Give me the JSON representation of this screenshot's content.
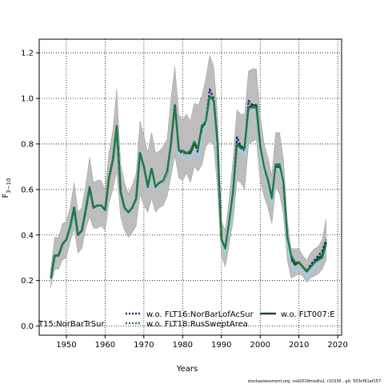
{
  "chart_data": {
    "type": "line",
    "xlabel": "Years",
    "ylabel_main": "F",
    "ylabel_sub": "3−10",
    "xlim": [
      1943,
      2021
    ],
    "ylim": [
      -0.04,
      1.26
    ],
    "xticks": [
      1950,
      1960,
      1970,
      1980,
      1990,
      2000,
      2010,
      2020
    ],
    "yticks": [
      0.0,
      0.2,
      0.4,
      0.6,
      0.8,
      1.0,
      1.2
    ],
    "ytick_labels": [
      "0.0",
      "0.2",
      "0.4",
      "0.6",
      "0.8",
      "1.0",
      "1.2"
    ],
    "grid": true,
    "legend_placement": "bottom",
    "x": [
      1946,
      1947,
      1948,
      1949,
      1950,
      1951,
      1952,
      1953,
      1954,
      1955,
      1956,
      1957,
      1958,
      1959,
      1960,
      1961,
      1962,
      1963,
      1964,
      1965,
      1966,
      1967,
      1968,
      1969,
      1970,
      1971,
      1972,
      1973,
      1974,
      1975,
      1976,
      1977,
      1978,
      1979,
      1980,
      1981,
      1982,
      1983,
      1984,
      1985,
      1986,
      1987,
      1988,
      1989,
      1990,
      1991,
      1992,
      1993,
      1994,
      1995,
      1996,
      1997,
      1998,
      1999,
      2000,
      2001,
      2002,
      2003,
      2004,
      2005,
      2006,
      2007,
      2008,
      2009,
      2010,
      2011,
      2012,
      2013,
      2014,
      2015,
      2016,
      2017
    ],
    "band_lower": [
      0.17,
      0.25,
      0.25,
      0.29,
      0.3,
      0.37,
      0.43,
      0.32,
      0.34,
      0.43,
      0.48,
      0.43,
      0.43,
      0.44,
      0.42,
      0.54,
      0.6,
      0.68,
      0.48,
      0.42,
      0.39,
      0.41,
      0.44,
      0.58,
      0.53,
      0.5,
      0.56,
      0.5,
      0.52,
      0.53,
      0.57,
      0.66,
      0.75,
      0.65,
      0.64,
      0.67,
      0.63,
      0.7,
      0.68,
      0.71,
      0.79,
      0.81,
      0.8,
      0.6,
      0.31,
      0.26,
      0.36,
      0.46,
      0.64,
      0.63,
      0.6,
      0.8,
      0.81,
      0.82,
      0.64,
      0.57,
      0.52,
      0.45,
      0.61,
      0.58,
      0.49,
      0.29,
      0.21,
      0.22,
      0.23,
      0.22,
      0.19,
      0.21,
      0.22,
      0.23,
      0.25,
      0.29
    ],
    "band_upper": [
      0.25,
      0.39,
      0.39,
      0.45,
      0.46,
      0.52,
      0.63,
      0.5,
      0.52,
      0.62,
      0.74,
      0.63,
      0.64,
      0.64,
      0.6,
      0.76,
      0.86,
      1.04,
      0.71,
      0.63,
      0.58,
      0.62,
      0.67,
      0.9,
      0.84,
      0.76,
      0.85,
      0.76,
      0.77,
      0.79,
      0.82,
      1.0,
      1.14,
      0.93,
      0.91,
      0.93,
      0.9,
      0.98,
      0.97,
      1.01,
      1.09,
      1.19,
      1.14,
      0.93,
      0.46,
      0.42,
      0.56,
      0.73,
      0.95,
      0.93,
      0.93,
      1.12,
      1.13,
      1.13,
      0.93,
      0.8,
      0.74,
      0.66,
      0.85,
      0.85,
      0.73,
      0.46,
      0.34,
      0.34,
      0.34,
      0.31,
      0.29,
      0.32,
      0.34,
      0.35,
      0.38,
      0.47
    ],
    "series": [
      {
        "name": "w.o. FLT16:NorBarLofAcSur",
        "color": "#1f2a8a",
        "dash": "3,2",
        "values": [
          0.21,
          0.31,
          0.31,
          0.36,
          0.38,
          0.44,
          0.52,
          0.4,
          0.42,
          0.51,
          0.61,
          0.52,
          0.53,
          0.53,
          0.51,
          0.65,
          0.73,
          0.88,
          0.59,
          0.52,
          0.5,
          0.52,
          0.56,
          0.76,
          0.69,
          0.61,
          0.69,
          0.61,
          0.63,
          0.64,
          0.68,
          0.8,
          0.97,
          0.77,
          0.76,
          0.76,
          0.76,
          0.81,
          0.76,
          0.87,
          0.9,
          1.04,
          1.0,
          0.8,
          0.38,
          0.33,
          0.45,
          0.59,
          0.83,
          0.79,
          0.77,
          0.99,
          0.97,
          0.97,
          0.78,
          0.68,
          0.63,
          0.55,
          0.71,
          0.71,
          0.63,
          0.38,
          0.29,
          0.27,
          0.28,
          0.26,
          0.24,
          0.27,
          0.29,
          0.31,
          0.33,
          0.38
        ]
      },
      {
        "name": "w.o. FLT007:E",
        "color": "#134f26",
        "dash": "",
        "values": [
          0.21,
          0.31,
          0.31,
          0.36,
          0.38,
          0.43,
          0.52,
          0.4,
          0.42,
          0.51,
          0.61,
          0.52,
          0.53,
          0.53,
          0.51,
          0.65,
          0.73,
          0.87,
          0.59,
          0.52,
          0.5,
          0.52,
          0.56,
          0.76,
          0.7,
          0.61,
          0.69,
          0.61,
          0.63,
          0.63,
          0.67,
          0.8,
          0.97,
          0.77,
          0.77,
          0.76,
          0.76,
          0.8,
          0.78,
          0.88,
          0.89,
          1.01,
          0.99,
          0.8,
          0.38,
          0.34,
          0.45,
          0.58,
          0.8,
          0.79,
          0.78,
          0.96,
          0.97,
          0.97,
          0.79,
          0.69,
          0.64,
          0.56,
          0.7,
          0.7,
          0.62,
          0.38,
          0.3,
          0.27,
          0.28,
          0.26,
          0.24,
          0.26,
          0.28,
          0.3,
          0.31,
          0.37
        ]
      },
      {
        "name": "T15:NorBarTrSur",
        "color": "#9fd0e8",
        "dash": "",
        "values": [
          0.21,
          0.31,
          0.31,
          0.36,
          0.38,
          0.43,
          0.52,
          0.4,
          0.42,
          0.51,
          0.61,
          0.52,
          0.53,
          0.53,
          0.51,
          0.65,
          0.73,
          0.87,
          0.59,
          0.52,
          0.5,
          0.52,
          0.56,
          0.76,
          0.69,
          0.6,
          0.68,
          0.6,
          0.62,
          0.63,
          0.67,
          0.79,
          0.96,
          0.75,
          0.74,
          0.73,
          0.73,
          0.77,
          0.74,
          0.84,
          0.87,
          1.0,
          0.97,
          0.78,
          0.37,
          0.32,
          0.44,
          0.57,
          0.78,
          0.77,
          0.75,
          0.94,
          0.94,
          0.95,
          0.77,
          0.67,
          0.62,
          0.54,
          0.69,
          0.69,
          0.61,
          0.36,
          0.27,
          0.24,
          0.25,
          0.24,
          0.22,
          0.24,
          0.26,
          0.27,
          0.29,
          0.33
        ]
      },
      {
        "name": "w.o. FLT18:RusSweptArea",
        "color": "#1a7a46",
        "dash": "",
        "values": [
          0.21,
          0.31,
          0.31,
          0.36,
          0.38,
          0.44,
          0.52,
          0.4,
          0.42,
          0.51,
          0.61,
          0.52,
          0.53,
          0.53,
          0.51,
          0.65,
          0.73,
          0.88,
          0.59,
          0.52,
          0.5,
          0.52,
          0.56,
          0.76,
          0.7,
          0.61,
          0.69,
          0.61,
          0.63,
          0.64,
          0.68,
          0.8,
          0.97,
          0.77,
          0.77,
          0.76,
          0.77,
          0.81,
          0.78,
          0.88,
          0.9,
          1.01,
          0.99,
          0.8,
          0.38,
          0.34,
          0.46,
          0.59,
          0.8,
          0.78,
          0.78,
          0.96,
          0.96,
          0.96,
          0.79,
          0.7,
          0.64,
          0.56,
          0.71,
          0.71,
          0.63,
          0.39,
          0.31,
          0.28,
          0.28,
          0.26,
          0.24,
          0.26,
          0.28,
          0.29,
          0.3,
          0.36
        ]
      }
    ],
    "legend": [
      {
        "label": "T15:NorBarTrSur",
        "color": "#9fd0e8",
        "dash": "",
        "clipped": true
      },
      {
        "label": "w.o. FLT16:NorBarLofAcSur",
        "color": "#1f2a8a",
        "dash": "2,2"
      },
      {
        "label": "w.o. FLT18:RusSweptArea",
        "color": "#1a7a46",
        "dash": "2,2"
      },
      {
        "label": "w.o. FLT007:E",
        "color": "#134f26",
        "dash": ""
      }
    ],
    "band_color": "#bdbdbd"
  },
  "footer": "stockassessment.org, vsd2018modiv2, r10336 , git: 503cf91af157"
}
